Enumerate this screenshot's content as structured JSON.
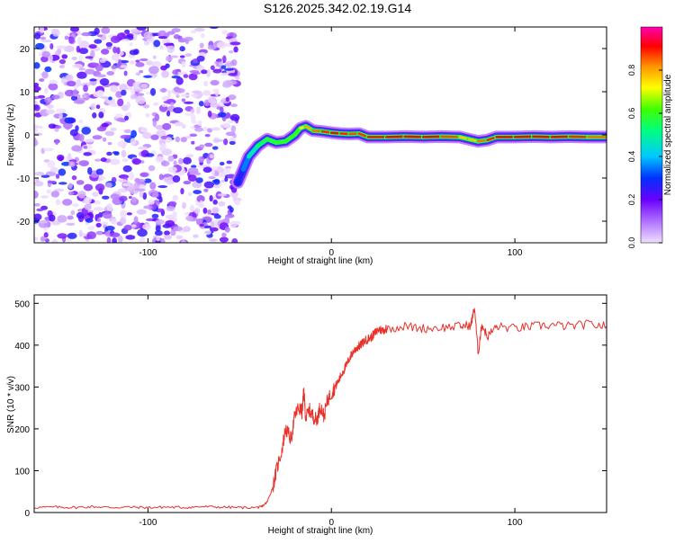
{
  "figure_title": "S126.2025.342.02.19.G14",
  "colors": {
    "snr_line": "#e8312a",
    "low_scatter": "#8a2be2"
  },
  "chart_data": [
    {
      "type": "heatmap",
      "title": "",
      "xlabel": "Height of straight line (km)",
      "ylabel": "Frequency (Hz)",
      "xlim": [
        -162,
        150
      ],
      "ylim": [
        -25,
        25
      ],
      "xticks": [
        -100,
        0,
        100
      ],
      "yticks": [
        -20,
        -10,
        0,
        10,
        20
      ],
      "colorbar": {
        "label": "Normalized spectral amplitude",
        "range": [
          0.0,
          1.0
        ],
        "ticks": [
          "0.0",
          "0.2",
          "0.4",
          "0.6",
          "0.8"
        ],
        "tick_values": [
          0.0,
          0.2,
          0.4,
          0.6,
          0.8
        ],
        "colormap": [
          "#f0e0ff",
          "#b070ff",
          "#6a00ff",
          "#0030ff",
          "#00c8ff",
          "#00ff80",
          "#40ff00",
          "#ffff00",
          "#ff9000",
          "#ff0000",
          "#ff00b0"
        ]
      },
      "ridge": {
        "x": [
          -51,
          -48,
          -45,
          -40,
          -35,
          -30,
          -25,
          -20,
          -17,
          -14,
          -10,
          -5,
          0,
          5,
          10,
          15,
          20,
          30,
          40,
          50,
          60,
          70,
          75,
          80,
          85,
          90,
          100,
          110,
          120,
          130,
          140,
          150
        ],
        "y": [
          -11,
          -8,
          -5,
          -2.5,
          -1,
          -1.8,
          -1.5,
          0,
          1.5,
          2,
          1,
          0.8,
          0.5,
          0.3,
          0.2,
          0.3,
          -0.5,
          -0.5,
          -0.4,
          -0.5,
          -0.4,
          -0.5,
          -1,
          -1.5,
          -1.2,
          -0.5,
          -0.5,
          -0.4,
          -0.5,
          -0.4,
          -0.5,
          -0.5
        ],
        "amplitude": [
          0.2,
          0.3,
          0.4,
          0.5,
          0.55,
          0.55,
          0.6,
          0.55,
          0.65,
          0.75,
          0.8,
          0.85,
          0.9,
          0.9,
          0.85,
          0.85,
          0.88,
          0.9,
          0.9,
          0.9,
          0.9,
          0.8,
          0.7,
          0.8,
          0.85,
          0.9,
          0.9,
          0.9,
          0.9,
          0.9,
          0.85,
          0.8
        ]
      },
      "noise_region": {
        "x_range": [
          -162,
          -51
        ],
        "amplitude_range": [
          0.0,
          0.3
        ]
      }
    },
    {
      "type": "line",
      "title": "",
      "xlabel": "Height of straight line (km)",
      "ylabel": "SNR (10 * v/v)",
      "xlim": [
        -162,
        150
      ],
      "ylim": [
        0,
        520
      ],
      "xticks": [
        -100,
        0,
        100
      ],
      "yticks": [
        0,
        100,
        200,
        300,
        400,
        500
      ],
      "series": [
        {
          "x": [
            -162,
            -150,
            -140,
            -130,
            -120,
            -110,
            -100,
            -90,
            -80,
            -70,
            -60,
            -50,
            -40,
            -38,
            -35,
            -32,
            -30,
            -27,
            -25,
            -22,
            -20,
            -18,
            -16,
            -15,
            -14,
            -12,
            -10,
            -8,
            -6,
            -4,
            -2,
            0,
            2,
            4,
            6,
            8,
            10,
            12,
            14,
            16,
            18,
            20,
            22,
            24,
            26,
            28,
            30,
            40,
            50,
            60,
            70,
            76,
            78,
            80,
            82,
            85,
            90,
            100,
            110,
            120,
            130,
            140,
            150
          ],
          "y": [
            12,
            13,
            12,
            14,
            12,
            13,
            12,
            13,
            12,
            14,
            13,
            12,
            12,
            14,
            25,
            60,
            100,
            150,
            200,
            175,
            230,
            250,
            240,
            290,
            225,
            245,
            230,
            220,
            255,
            230,
            270,
            285,
            300,
            315,
            335,
            350,
            370,
            385,
            395,
            400,
            410,
            415,
            420,
            430,
            438,
            435,
            440,
            445,
            440,
            442,
            445,
            448,
            490,
            380,
            450,
            420,
            445,
            440,
            445,
            448,
            445,
            450,
            445
          ]
        }
      ]
    }
  ]
}
